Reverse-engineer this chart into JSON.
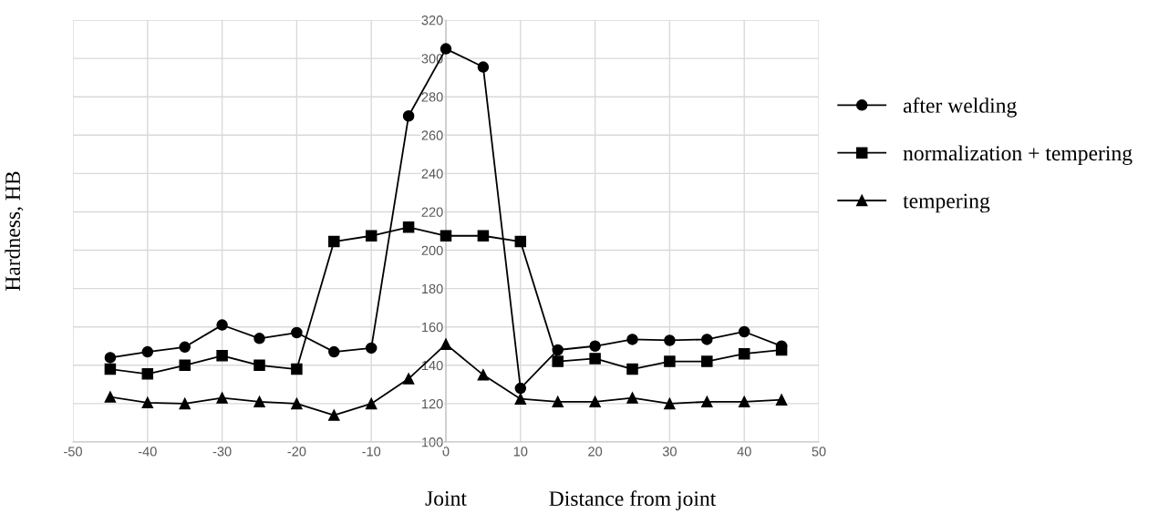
{
  "chart_data": {
    "type": "line",
    "ylabel": "Hardness, HB",
    "xlabel": "Distance from joint",
    "annotations": [
      "Joint"
    ],
    "x": [
      -45,
      -40,
      -35,
      -30,
      -25,
      -20,
      -15,
      -10,
      -5,
      0,
      5,
      10,
      15,
      20,
      25,
      30,
      35,
      40,
      45
    ],
    "series": [
      {
        "name": "after welding",
        "color": "#000000",
        "marker": "circle",
        "values": [
          144,
          147,
          149.5,
          161,
          154,
          157,
          147,
          149,
          270,
          305,
          295.5,
          128,
          148,
          150,
          153.5,
          153,
          153.5,
          157.5,
          150
        ]
      },
      {
        "name": "normalization + tempering",
        "color": "#000000",
        "marker": "square",
        "values": [
          138,
          135.5,
          140,
          145,
          140,
          138,
          204.5,
          207.5,
          212,
          207.5,
          207.5,
          204.5,
          142,
          143.5,
          138,
          142,
          142,
          146,
          148
        ]
      },
      {
        "name": "tempering",
        "color": "#000000",
        "marker": "triangle",
        "values": [
          123.5,
          120.5,
          120,
          123,
          121,
          120,
          114,
          120,
          133,
          151,
          135,
          122.5,
          121,
          121,
          123,
          120,
          121,
          121,
          122
        ]
      }
    ],
    "xlim": [
      -50,
      50
    ],
    "xticks": [
      -50,
      -40,
      -30,
      -20,
      -10,
      0,
      10,
      20,
      30,
      40,
      50
    ],
    "ylim": [
      100,
      320
    ],
    "yticks": [
      100,
      120,
      140,
      160,
      180,
      200,
      220,
      240,
      260,
      280,
      300,
      320
    ],
    "grid": true,
    "legend": "right",
    "line_style": "solid"
  }
}
